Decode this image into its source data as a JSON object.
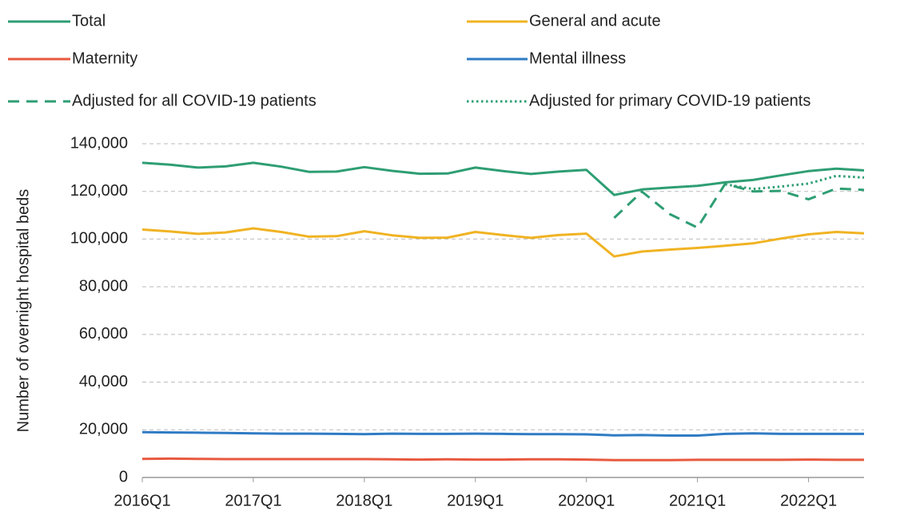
{
  "chart_data": {
    "type": "line",
    "y_label": "Number of overnight hospital beds",
    "categories": [
      "2016Q1",
      null,
      null,
      null,
      "2017Q1",
      null,
      null,
      null,
      "2018Q1",
      null,
      null,
      null,
      "2019Q1",
      null,
      null,
      null,
      "2020Q1",
      null,
      null,
      null,
      "2021Q1",
      null,
      null,
      null,
      "2022Q1",
      null,
      null
    ],
    "series": [
      {
        "name": "Total",
        "color": "#2e9e73",
        "line_style": "solid",
        "values": [
          132000,
          131200,
          130000,
          130500,
          132000,
          130400,
          128200,
          128300,
          130200,
          128600,
          127400,
          127500,
          130000,
          128500,
          127300,
          128300,
          129000,
          118500,
          120800,
          121600,
          122300,
          123800,
          124800,
          126700,
          128500,
          129500,
          128800
        ]
      },
      {
        "name": "General and acute",
        "color": "#f0b323",
        "line_style": "solid",
        "values": [
          104000,
          103200,
          102200,
          102800,
          104500,
          103000,
          101000,
          101200,
          103300,
          101600,
          100500,
          100600,
          103000,
          101700,
          100500,
          101700,
          102300,
          92700,
          94800,
          95600,
          96300,
          97200,
          98200,
          100200,
          102000,
          103000,
          102400
        ]
      },
      {
        "name": "Maternity",
        "color": "#e8593f",
        "line_style": "solid",
        "values": [
          7800,
          7900,
          7800,
          7700,
          7700,
          7700,
          7700,
          7700,
          7700,
          7600,
          7500,
          7600,
          7500,
          7500,
          7600,
          7600,
          7500,
          7300,
          7300,
          7300,
          7400,
          7400,
          7400,
          7400,
          7500,
          7400,
          7400
        ]
      },
      {
        "name": "Mental illness",
        "color": "#2f7bc4",
        "line_style": "solid",
        "values": [
          19000,
          18900,
          18800,
          18700,
          18500,
          18400,
          18400,
          18300,
          18200,
          18400,
          18300,
          18300,
          18400,
          18300,
          18200,
          18200,
          18100,
          17700,
          17800,
          17600,
          17600,
          18300,
          18500,
          18300,
          18300,
          18300,
          18300
        ]
      },
      {
        "name": "Adjusted for all COVID-19 patients",
        "color": "#2e9e73",
        "line_style": "dashed",
        "values": [
          null,
          null,
          null,
          null,
          null,
          null,
          null,
          null,
          null,
          null,
          null,
          null,
          null,
          null,
          null,
          null,
          null,
          108900,
          119900,
          110500,
          104800,
          123200,
          120000,
          120200,
          116700,
          121200,
          120600
        ]
      },
      {
        "name": "Adjusted for primary COVID-19 patients",
        "color": "#2e9e73",
        "line_style": "dotted",
        "values": [
          null,
          null,
          null,
          null,
          null,
          null,
          null,
          null,
          null,
          null,
          null,
          null,
          null,
          null,
          null,
          null,
          null,
          null,
          null,
          null,
          null,
          123000,
          121000,
          122000,
          123300,
          126500,
          125800
        ]
      }
    ],
    "ylim": [
      0,
      140000
    ],
    "yticks": [
      0,
      {
        "value": 20000,
        "label": "20,000"
      },
      {
        "value": 40000,
        "label": "40,000"
      },
      {
        "value": 60000,
        "label": "60,000"
      },
      {
        "value": 80000,
        "label": "80,000"
      },
      {
        "value": 100000,
        "label": "100,000"
      },
      {
        "value": 120000,
        "label": "120,000"
      },
      {
        "value": 140000,
        "label": "140,000"
      }
    ],
    "grid": true,
    "legend": "top"
  }
}
